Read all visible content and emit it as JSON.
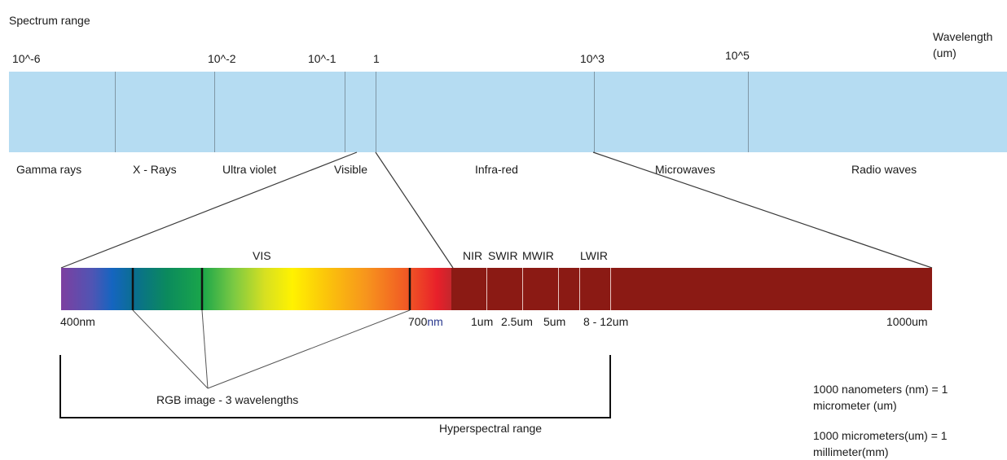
{
  "title": "Spectrum range",
  "axis_unit": "Wavelength\n(um)",
  "ticks": [
    "10^-6",
    "10^-2",
    "10^-1",
    "1",
    "10^3",
    "10^5"
  ],
  "bands": [
    "Gamma rays",
    "X - Rays",
    "Ultra violet",
    "Visible",
    "Infra-red",
    "Microwaves",
    "Radio waves"
  ],
  "lower_bar": {
    "vis_label": "VIS",
    "ir_labels": [
      "NIR",
      "SWIR",
      "MWIR",
      "LWIR"
    ],
    "wavelengths": {
      "start": "400nm",
      "vis_end_num": "700",
      "vis_end_unit": "nm",
      "ir_ticks": [
        "1um",
        "2.5um",
        "5um",
        "8 - 12um"
      ],
      "end": "1000um"
    }
  },
  "rgb_label": "RGB image - 3 wavelengths",
  "hyperspectral_label": "Hyperspectral range",
  "notes": {
    "nm_to_um": "1000 nanometers (nm) = 1 micrometer (um)",
    "um_to_mm": "1000 micrometers(um) = 1 millimeter(mm)"
  },
  "colors": {
    "spectrum_band": "#b5dcf2",
    "band_divider": "#7f97a6",
    "infrared_bar": "#8b1a14",
    "ir_divider": "#e8c4c0",
    "lines": "#3a3a3a"
  }
}
